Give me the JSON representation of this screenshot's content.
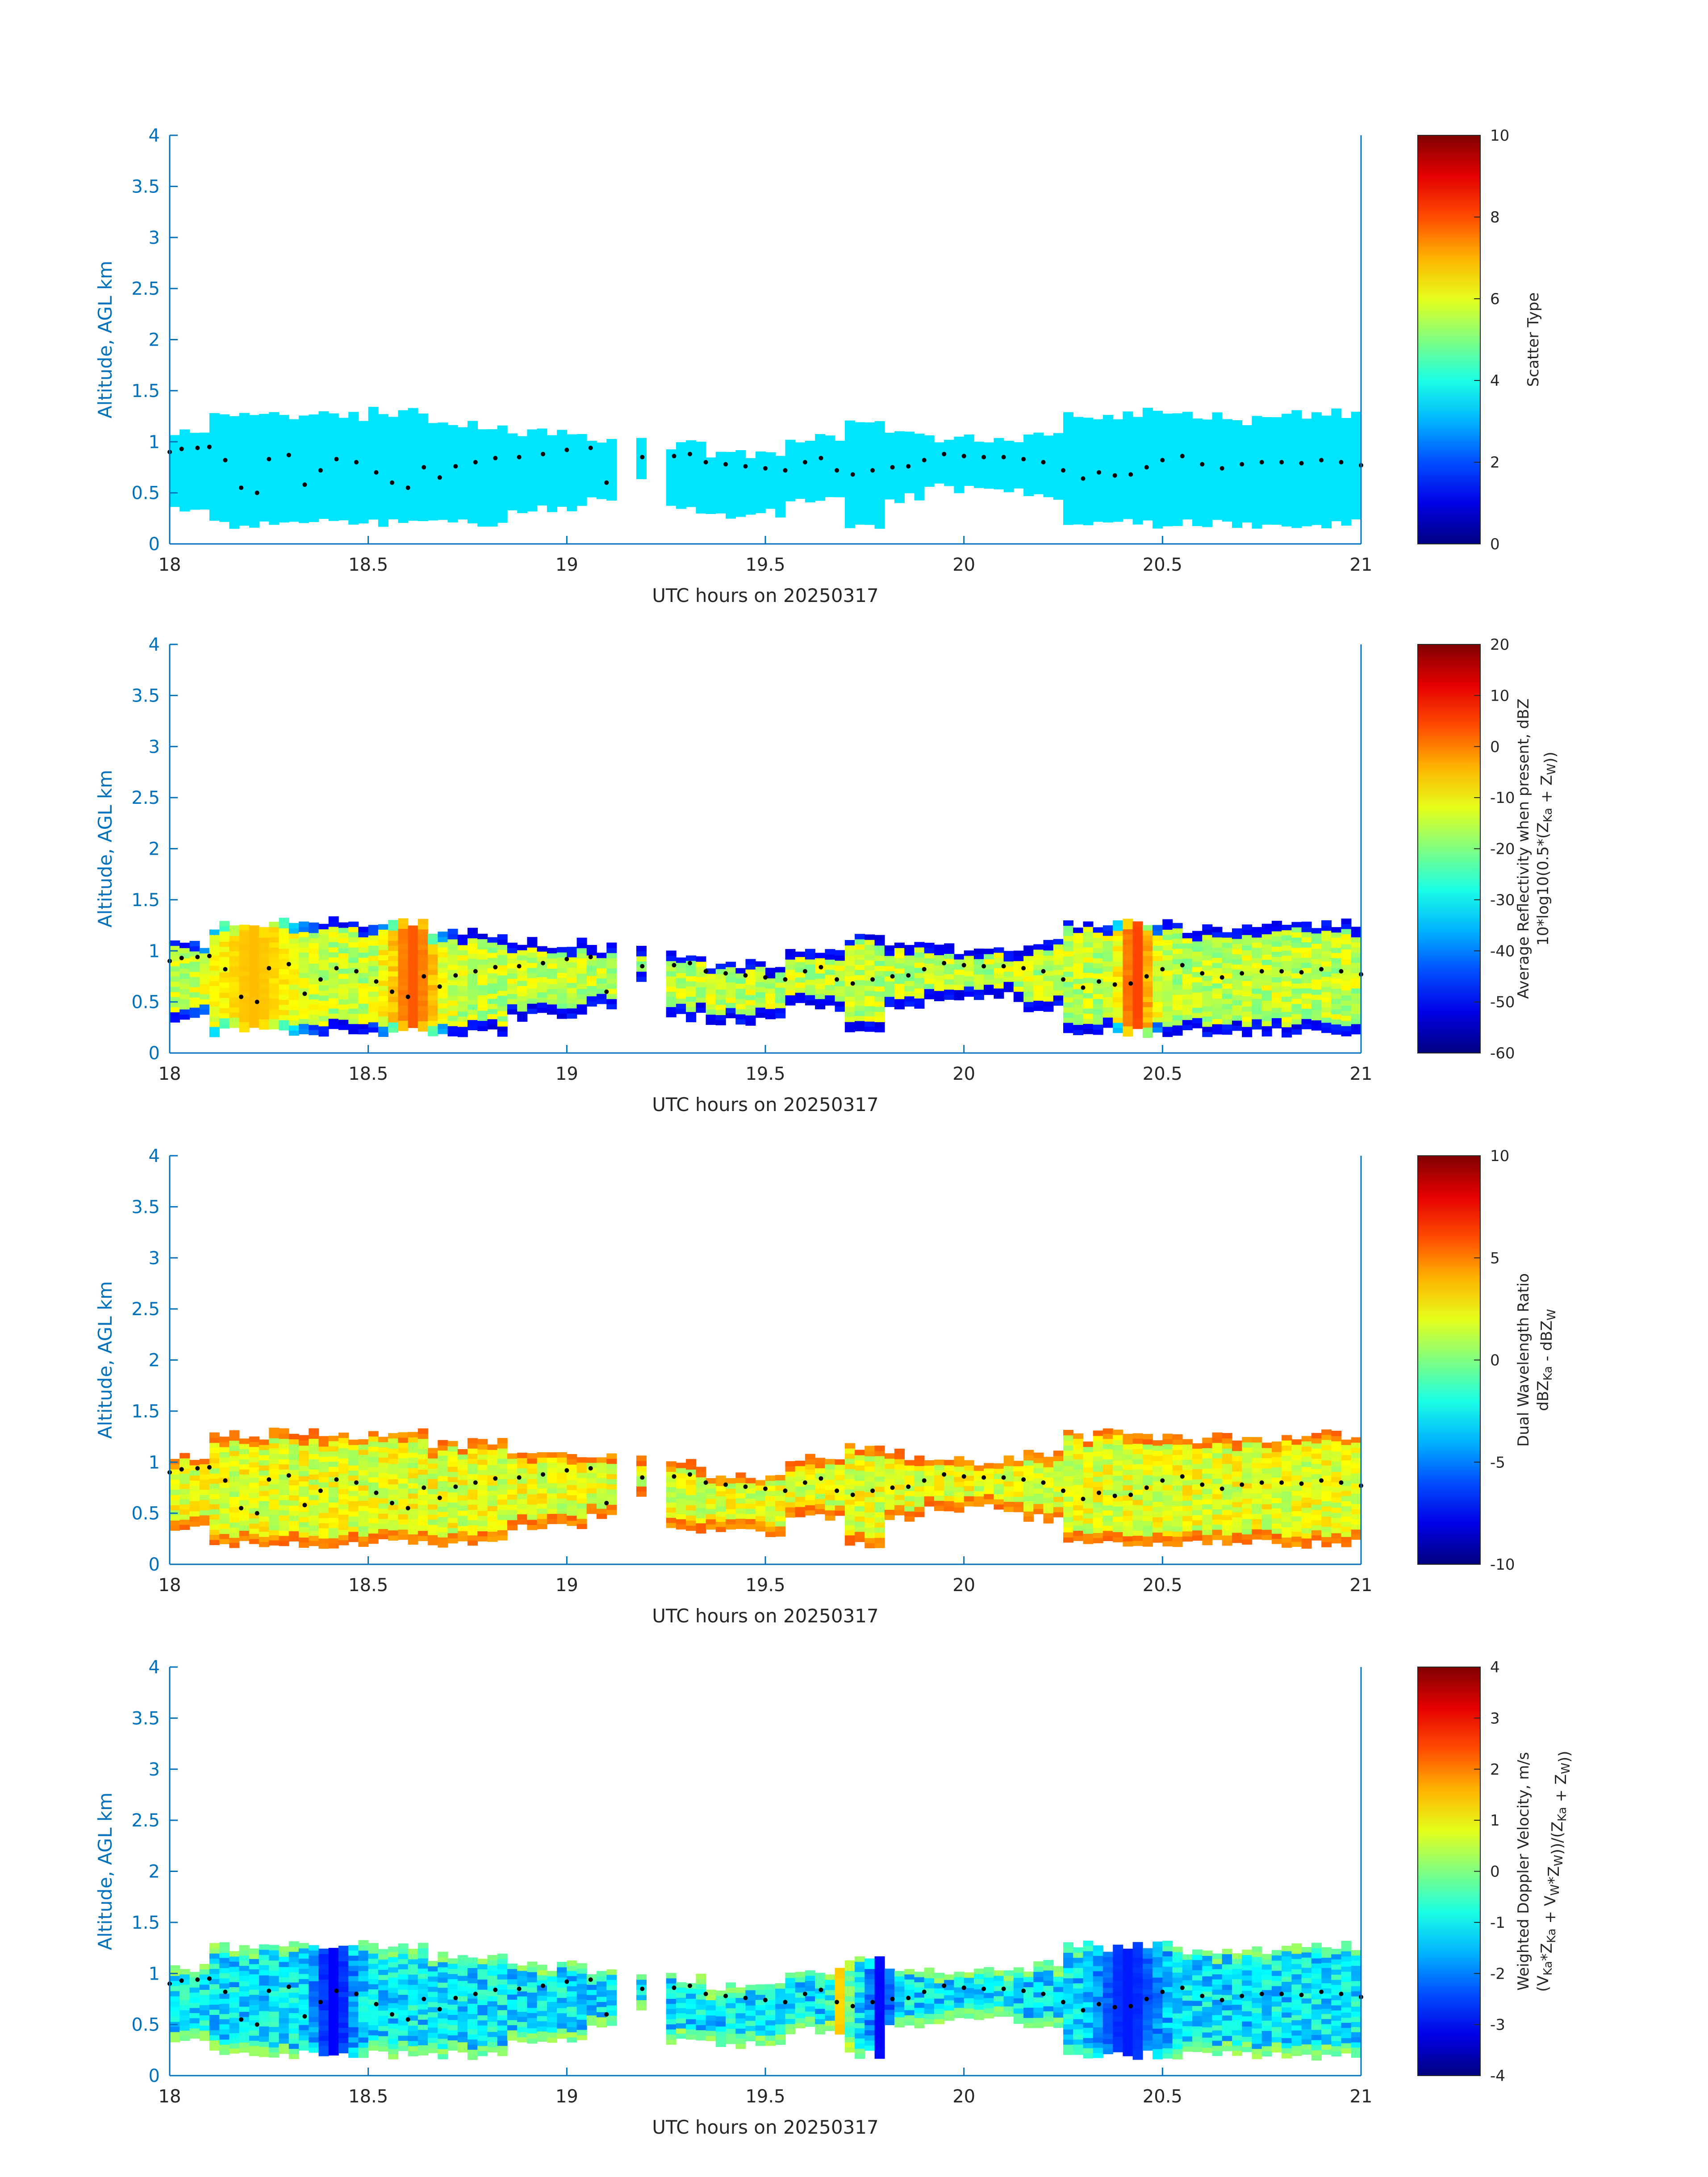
{
  "figure": {
    "panels": [
      {
        "ylabel": "Altitude, AGL km",
        "xlabel": "UTC hours on 20250317",
        "cb_label_lines": [
          [
            "Scatter Type"
          ]
        ],
        "cmin": 0,
        "cmax": 10,
        "cticks": [
          "0",
          "2",
          "4",
          "6",
          "8",
          "10"
        ]
      },
      {
        "ylabel": "Altitude, AGL km",
        "xlabel": "UTC hours on 20250317",
        "cb_label_lines": [
          [
            "Average Reflectivity when present, dBZ"
          ],
          [
            "10*log10(0.5*(Z",
            {
              "sub": "Ka"
            },
            " + Z",
            {
              "sub": "W"
            },
            "))"
          ]
        ],
        "cmin": -60,
        "cmax": 20,
        "cticks": [
          "-60",
          "-50",
          "-40",
          "-30",
          "-20",
          "-10",
          "0",
          "10",
          "20"
        ]
      },
      {
        "ylabel": "Altitude, AGL km",
        "xlabel": "UTC hours on 20250317",
        "cb_label_lines": [
          [
            "Dual Wavelength Ratio"
          ],
          [
            "dBZ",
            {
              "sub": "Ka"
            },
            " - dBZ",
            {
              "sub": "W"
            }
          ]
        ],
        "cmin": -10,
        "cmax": 10,
        "cticks": [
          "-10",
          "-5",
          "0",
          "5",
          "10"
        ]
      },
      {
        "ylabel": "Altitude, AGL km",
        "xlabel": "UTC hours on 20250317",
        "cb_label_lines": [
          [
            "Weighted Doppler Velocity, m/s"
          ],
          [
            "(V",
            {
              "sub": "Ka"
            },
            "*Z",
            {
              "sub": "Ka"
            },
            " + V",
            {
              "sub": "W"
            },
            "*Z",
            {
              "sub": "W"
            },
            "))/(Z",
            {
              "sub": "Ka"
            },
            " + Z",
            {
              "sub": "W"
            },
            "))"
          ]
        ],
        "cmin": -4,
        "cmax": 4,
        "cticks": [
          "-4",
          "-3",
          "-2",
          "-1",
          "0",
          "1",
          "2",
          "3",
          "4"
        ]
      }
    ]
  },
  "chart_data": {
    "type": "heatmap",
    "colormap": "jet",
    "xlim": [
      18,
      21
    ],
    "ylim": [
      0,
      4
    ],
    "xticks": [
      "18",
      "18.5",
      "19",
      "19.5",
      "20",
      "20.5",
      "21"
    ],
    "yticks": [
      "0",
      "0.5",
      "1",
      "1.5",
      "2",
      "2.5",
      "3",
      "3.5",
      "4"
    ],
    "echo_mask": {
      "description_x": "UTC hours",
      "segments": [
        {
          "x": [
            18.0,
            18.1
          ],
          "bottom": 0.35,
          "top": 1.05
        },
        {
          "x": [
            18.1,
            18.3
          ],
          "bottom": 0.2,
          "top": 1.25
        },
        {
          "x": [
            18.3,
            18.65
          ],
          "bottom": 0.2,
          "top": 1.25
        },
        {
          "x": [
            18.65,
            18.85
          ],
          "bottom": 0.2,
          "top": 1.15
        },
        {
          "x": [
            18.85,
            19.05
          ],
          "bottom": 0.35,
          "top": 1.05
        },
        {
          "x": [
            19.05,
            19.12
          ],
          "bottom": 0.45,
          "top": 1.0
        },
        {
          "x": [
            19.17,
            19.2
          ],
          "bottom": 0.65,
          "top": 1.0
        },
        {
          "x": [
            19.26,
            19.35
          ],
          "bottom": 0.35,
          "top": 0.95
        },
        {
          "x": [
            19.35,
            19.55
          ],
          "bottom": 0.3,
          "top": 0.85
        },
        {
          "x": [
            19.55,
            19.7
          ],
          "bottom": 0.45,
          "top": 1.0
        },
        {
          "x": [
            19.7,
            19.8
          ],
          "bottom": 0.2,
          "top": 1.15
        },
        {
          "x": [
            19.8,
            19.9
          ],
          "bottom": 0.45,
          "top": 1.05
        },
        {
          "x": [
            19.9,
            20.15
          ],
          "bottom": 0.55,
          "top": 1.0
        },
        {
          "x": [
            20.15,
            20.25
          ],
          "bottom": 0.45,
          "top": 1.05
        },
        {
          "x": [
            20.25,
            20.55
          ],
          "bottom": 0.2,
          "top": 1.25
        },
        {
          "x": [
            20.55,
            20.8
          ],
          "bottom": 0.2,
          "top": 1.2
        },
        {
          "x": [
            20.8,
            21.0
          ],
          "bottom": 0.2,
          "top": 1.25
        }
      ]
    },
    "cloud_base_dots": [
      [
        18.0,
        0.9
      ],
      [
        18.03,
        0.93
      ],
      [
        18.07,
        0.94
      ],
      [
        18.1,
        0.95
      ],
      [
        18.14,
        0.82
      ],
      [
        18.18,
        0.55
      ],
      [
        18.22,
        0.5
      ],
      [
        18.25,
        0.83
      ],
      [
        18.3,
        0.87
      ],
      [
        18.34,
        0.58
      ],
      [
        18.38,
        0.72
      ],
      [
        18.42,
        0.83
      ],
      [
        18.47,
        0.8
      ],
      [
        18.52,
        0.7
      ],
      [
        18.56,
        0.6
      ],
      [
        18.6,
        0.55
      ],
      [
        18.64,
        0.75
      ],
      [
        18.68,
        0.65
      ],
      [
        18.72,
        0.76
      ],
      [
        18.77,
        0.8
      ],
      [
        18.82,
        0.84
      ],
      [
        18.88,
        0.85
      ],
      [
        18.94,
        0.88
      ],
      [
        19.0,
        0.92
      ],
      [
        19.06,
        0.94
      ],
      [
        19.1,
        0.6
      ],
      [
        19.19,
        0.85
      ],
      [
        19.27,
        0.86
      ],
      [
        19.31,
        0.88
      ],
      [
        19.35,
        0.8
      ],
      [
        19.4,
        0.78
      ],
      [
        19.45,
        0.76
      ],
      [
        19.5,
        0.74
      ],
      [
        19.55,
        0.72
      ],
      [
        19.6,
        0.8
      ],
      [
        19.64,
        0.84
      ],
      [
        19.68,
        0.72
      ],
      [
        19.72,
        0.68
      ],
      [
        19.77,
        0.72
      ],
      [
        19.82,
        0.75
      ],
      [
        19.86,
        0.76
      ],
      [
        19.9,
        0.82
      ],
      [
        19.95,
        0.88
      ],
      [
        20.0,
        0.86
      ],
      [
        20.05,
        0.85
      ],
      [
        20.1,
        0.85
      ],
      [
        20.15,
        0.83
      ],
      [
        20.2,
        0.8
      ],
      [
        20.25,
        0.72
      ],
      [
        20.3,
        0.64
      ],
      [
        20.34,
        0.7
      ],
      [
        20.38,
        0.67
      ],
      [
        20.42,
        0.68
      ],
      [
        20.46,
        0.75
      ],
      [
        20.5,
        0.82
      ],
      [
        20.55,
        0.86
      ],
      [
        20.6,
        0.78
      ],
      [
        20.65,
        0.74
      ],
      [
        20.7,
        0.78
      ],
      [
        20.75,
        0.8
      ],
      [
        20.8,
        0.8
      ],
      [
        20.85,
        0.79
      ],
      [
        20.9,
        0.82
      ],
      [
        20.95,
        0.8
      ],
      [
        21.0,
        0.77
      ]
    ],
    "panels": [
      {
        "field": "scatter_type",
        "cmin": 0,
        "cmax": 10,
        "typical_value": 3.5,
        "noise": 0.0,
        "core": null
      },
      {
        "field": "reflectivity_dBZ",
        "cmin": -60,
        "cmax": 20,
        "typical_value": -15,
        "noise": 6,
        "edge_value": -50,
        "core": [
          {
            "x": 18.6,
            "value": 3,
            "width": 0.06
          },
          {
            "x": 20.42,
            "value": 5,
            "width": 0.04
          },
          {
            "x": 18.2,
            "value": -5,
            "width": 0.1
          }
        ]
      },
      {
        "field": "dual_wavelength_ratio_dB",
        "cmin": -10,
        "cmax": 10,
        "typical_value": 2,
        "noise": 1.5,
        "edge_value": 5,
        "core": null
      },
      {
        "field": "doppler_velocity_m_s",
        "cmin": -4,
        "cmax": 4,
        "typical_value": -1.2,
        "noise": 0.8,
        "edge_value": 0,
        "core": [
          {
            "x": 18.4,
            "value": -3,
            "width": 0.05
          },
          {
            "x": 19.78,
            "value": -3,
            "width": 0.03
          },
          {
            "x": 20.4,
            "value": -2.8,
            "width": 0.08
          },
          {
            "x": 19.68,
            "value": 1.5,
            "width": 0.02
          }
        ]
      }
    ]
  }
}
